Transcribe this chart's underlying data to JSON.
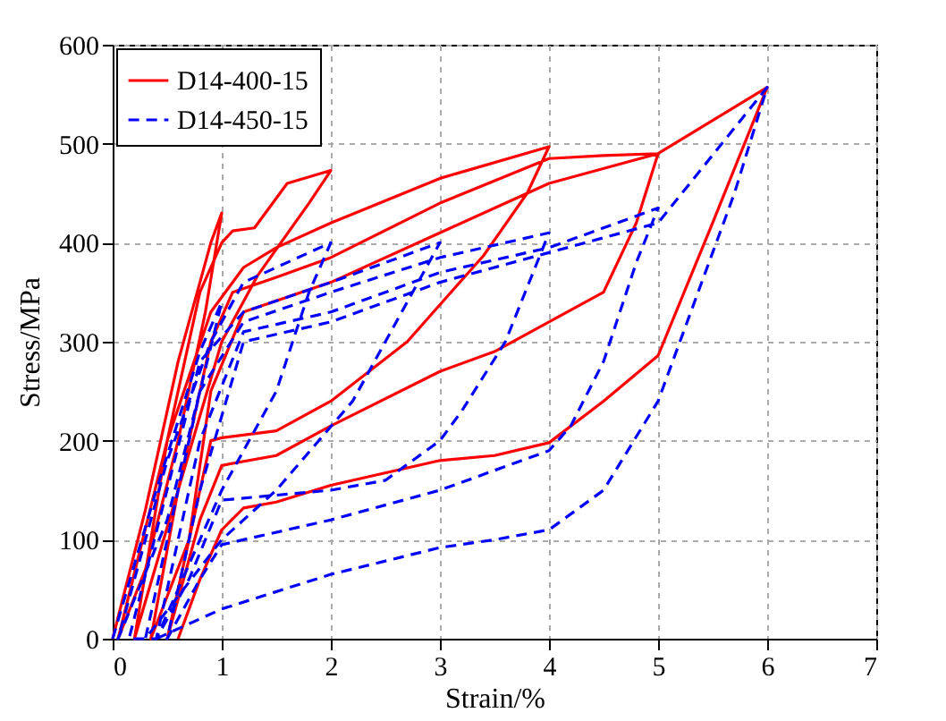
{
  "chart_data": {
    "type": "line",
    "xlabel": "Strain/%",
    "ylabel": "Stress/MPa",
    "xlim": [
      0,
      7
    ],
    "ylim": [
      0,
      600
    ],
    "xticks": [
      0,
      1,
      2,
      3,
      4,
      5,
      6,
      7
    ],
    "yticks": [
      0,
      100,
      200,
      300,
      400,
      500,
      600
    ],
    "grid": true,
    "legend": "top left",
    "marker": "none",
    "series": [
      {
        "name": "D14-400-15",
        "color": "#ff0000",
        "line_style": "solid",
        "x": [
          0,
          0.3,
          0.6,
          0.9,
          1.0,
          0.85,
          0.6,
          0.3,
          0.05,
          0.5,
          0.8,
          1.0,
          1.1,
          1.3,
          1.6,
          2.0,
          1.8,
          1.33,
          1.0,
          0.6,
          0.2,
          0.5,
          0.9,
          1.2,
          1.5,
          2.0,
          3.0,
          4.0,
          3.8,
          3.4,
          2.7,
          2.0,
          1.5,
          1.0,
          0.9,
          0.7,
          0.35,
          0.6,
          0.9,
          1.1,
          1.5,
          2.0,
          3.0,
          4.0,
          4.5,
          5.0,
          4.8,
          4.5,
          4.0,
          3.5,
          3.0,
          2.0,
          1.5,
          1.0,
          0.8,
          0.5,
          0.7,
          0.9,
          1.2,
          2.0,
          3.0,
          4.0,
          5.0,
          6.0,
          5.5,
          5.0,
          4.5,
          4.0,
          3.5,
          3.0,
          2.0,
          1.5,
          1.2,
          1.0,
          0.8,
          0.6
        ],
        "values": [
          0,
          130,
          280,
          400,
          430,
          330,
          200,
          70,
          0,
          200,
          350,
          400,
          412,
          415,
          460,
          473,
          440,
          367,
          300,
          150,
          0,
          200,
          330,
          375,
          395,
          420,
          465,
          497,
          450,
          387,
          300,
          240,
          210,
          203,
          200,
          100,
          0,
          150,
          300,
          350,
          365,
          385,
          440,
          485,
          488,
          490,
          420,
          350,
          320,
          290,
          270,
          215,
          185,
          175,
          120,
          0,
          100,
          250,
          330,
          360,
          410,
          460,
          490,
          557,
          420,
          286,
          240,
          198,
          185,
          180,
          155,
          138,
          132,
          110,
          60,
          0
        ]
      },
      {
        "name": "D14-450-15",
        "color": "#0000ff",
        "line_style": "dashed",
        "x": [
          0,
          0.4,
          0.8,
          1.0,
          0.8,
          0.5,
          0.05,
          0.5,
          0.9,
          1.2,
          2.0,
          1.8,
          1.5,
          1.0,
          0.4,
          0.15,
          0.8,
          1.2,
          2.0,
          3.0,
          2.7,
          2.2,
          1.5,
          1.0,
          0.3,
          0.8,
          1.2,
          2.0,
          3.0,
          4.0,
          3.6,
          3.2,
          3.0,
          2.5,
          2.0,
          1.5,
          1.0,
          0.7,
          0.4,
          0.8,
          1.2,
          2.0,
          3.0,
          4.0,
          5.0,
          4.8,
          4.5,
          4.2,
          4.0,
          3.0,
          2.0,
          1.0,
          0.8,
          0.5,
          0.8,
          1.2,
          2.0,
          3.0,
          4.0,
          5.0,
          6.0,
          5.7,
          5.5,
          5.0,
          4.5,
          4.0,
          3.5,
          3.0,
          2.0,
          1.0,
          0.4
        ],
        "values": [
          0,
          150,
          290,
          340,
          250,
          120,
          0,
          180,
          300,
          360,
          400,
          350,
          250,
          150,
          0,
          0,
          280,
          330,
          360,
          400,
          340,
          240,
          150,
          100,
          0,
          250,
          320,
          350,
          385,
          410,
          300,
          230,
          200,
          160,
          150,
          145,
          140,
          60,
          0,
          200,
          310,
          330,
          370,
          395,
          435,
          380,
          280,
          215,
          190,
          150,
          120,
          95,
          60,
          0,
          150,
          300,
          320,
          360,
          390,
          420,
          557,
          450,
          390,
          240,
          150,
          110,
          100,
          92,
          65,
          30,
          0
        ]
      }
    ]
  }
}
